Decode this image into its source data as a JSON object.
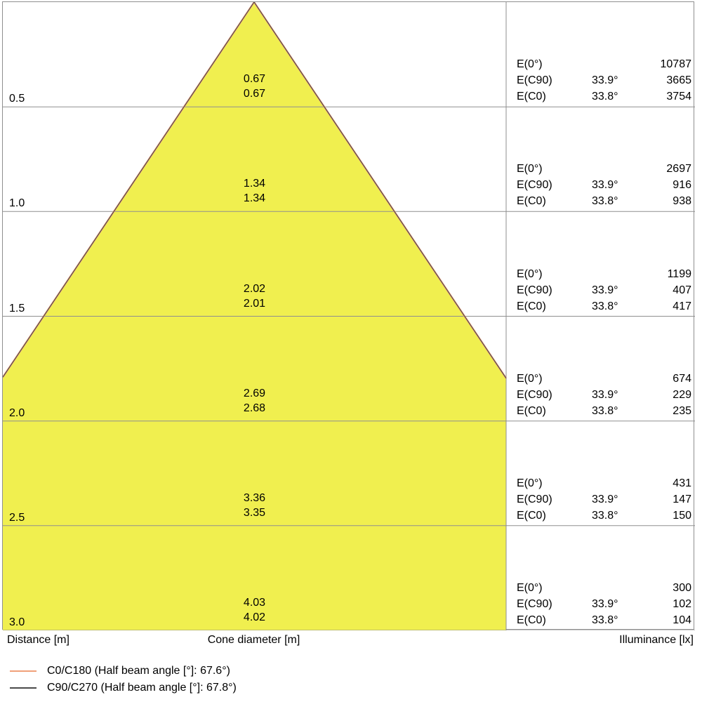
{
  "chart_data": {
    "type": "table",
    "subtype": "photometric-cone-diagram",
    "distance_axis_label": "Distance [m]",
    "cone_diameter_axis_label": "Cone diameter [m]",
    "illuminance_axis_label": "Illuminance [lx]",
    "e_labels": {
      "e0": "E(0°)",
      "ec90": "E(C90)",
      "ec0": "E(C0)"
    },
    "rows": [
      {
        "distance": "0.5",
        "cone_c90": "0.67",
        "cone_c0": "0.67",
        "e0": "10787",
        "ec90_angle": "33.9°",
        "ec90": "3665",
        "ec0_angle": "33.8°",
        "ec0": "3754"
      },
      {
        "distance": "1.0",
        "cone_c90": "1.34",
        "cone_c0": "1.34",
        "e0": "2697",
        "ec90_angle": "33.9°",
        "ec90": "916",
        "ec0_angle": "33.8°",
        "ec0": "938"
      },
      {
        "distance": "1.5",
        "cone_c90": "2.02",
        "cone_c0": "2.01",
        "e0": "1199",
        "ec90_angle": "33.9°",
        "ec90": "407",
        "ec0_angle": "33.8°",
        "ec0": "417"
      },
      {
        "distance": "2.0",
        "cone_c90": "2.69",
        "cone_c0": "2.68",
        "e0": "674",
        "ec90_angle": "33.9°",
        "ec90": "229",
        "ec0_angle": "33.8°",
        "ec0": "235"
      },
      {
        "distance": "2.5",
        "cone_c90": "3.36",
        "cone_c0": "3.35",
        "e0": "431",
        "ec90_angle": "33.9°",
        "ec90": "147",
        "ec0_angle": "33.8°",
        "ec0": "150"
      },
      {
        "distance": "3.0",
        "cone_c90": "4.03",
        "cone_c0": "4.02",
        "e0": "300",
        "ec90_angle": "33.9°",
        "ec90": "102",
        "ec0_angle": "33.8°",
        "ec0": "104"
      }
    ],
    "legend": [
      {
        "color": "#f0a079",
        "label": "C0/C180 (Half beam angle [°]: 67.6°)"
      },
      {
        "color": "#4a4a4a",
        "label": "C90/C270 (Half beam angle [°]: 67.8°)"
      }
    ],
    "layout": {
      "half_beam_tangent": 0.67,
      "axis_ranges": {
        "distance_m": [
          0,
          3.0
        ]
      },
      "grid": "on",
      "legend_position": "bottom-left"
    },
    "colors": {
      "cone_fill": "#f0ef4f",
      "grid": "#8f8f8f",
      "text": "#000000"
    }
  }
}
